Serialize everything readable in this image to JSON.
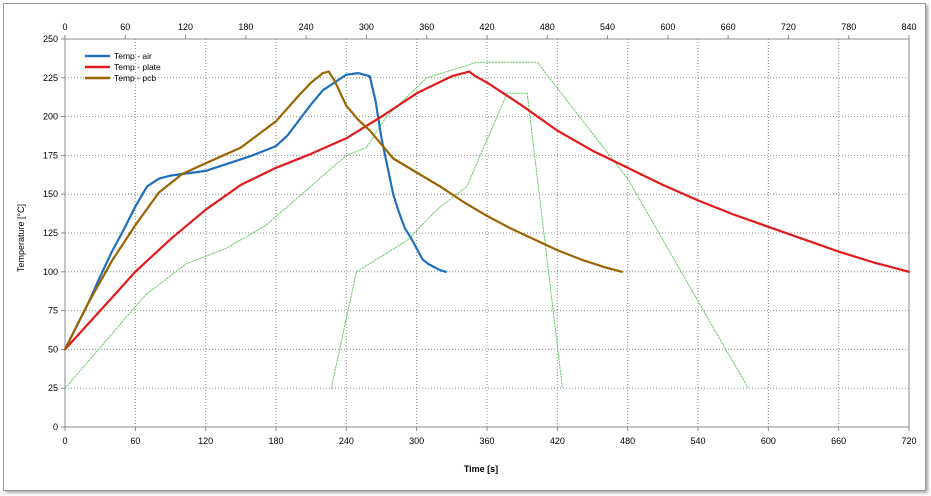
{
  "chart_data": {
    "type": "line",
    "title": "",
    "xlabel": "Time [s]",
    "ylabel": "Temperature [°C]",
    "x_range": [
      0,
      720
    ],
    "x2_range": [
      0,
      840
    ],
    "ylim": [
      0,
      250
    ],
    "x_ticks": [
      "0",
      "60",
      "120",
      "180",
      "240",
      "300",
      "360",
      "420",
      "480",
      "540",
      "600",
      "660",
      "720"
    ],
    "x2_ticks": [
      "0",
      "60",
      "120",
      "180",
      "240",
      "300",
      "360",
      "420",
      "480",
      "540",
      "600",
      "660",
      "720",
      "780",
      "840"
    ],
    "y_ticks": [
      "0",
      "25",
      "50",
      "75",
      "100",
      "125",
      "150",
      "175",
      "200",
      "225",
      "250"
    ],
    "grid": true,
    "legend_position": "top-left",
    "series": [
      {
        "name": "Temp - air",
        "color": "#1f6fbf",
        "axis": "primary",
        "x": [
          0,
          10,
          20,
          30,
          40,
          50,
          60,
          70,
          80,
          90,
          100,
          110,
          120,
          140,
          160,
          180,
          190,
          200,
          210,
          220,
          230,
          240,
          250,
          260,
          265,
          270,
          275,
          280,
          285,
          290,
          295,
          300,
          305,
          310,
          315,
          320,
          325
        ],
        "y": [
          50,
          65,
          80,
          97,
          113,
          127,
          142,
          155,
          160,
          162,
          163,
          164,
          165,
          170,
          175,
          181,
          188,
          198,
          208,
          217,
          222,
          227,
          228,
          226,
          210,
          186,
          168,
          150,
          138,
          128,
          122,
          115,
          108,
          105,
          103,
          101,
          100
        ]
      },
      {
        "name": "Temp - plate",
        "color": "#e31a1c",
        "axis": "primary",
        "x": [
          0,
          30,
          60,
          90,
          120,
          150,
          180,
          210,
          240,
          270,
          300,
          330,
          340,
          345,
          350,
          360,
          390,
          420,
          450,
          480,
          510,
          540,
          570,
          600,
          630,
          660,
          690,
          720
        ],
        "y": [
          50,
          75,
          100,
          121,
          140,
          156,
          167,
          176,
          186,
          200,
          215,
          226,
          228,
          229,
          226,
          222,
          207,
          191,
          178,
          167,
          156,
          146,
          137,
          129,
          121,
          113,
          106,
          100
        ]
      },
      {
        "name": "Temp - pcb",
        "color": "#9a6400",
        "axis": "primary",
        "x": [
          0,
          20,
          40,
          60,
          80,
          100,
          120,
          150,
          180,
          200,
          210,
          220,
          225,
          230,
          240,
          250,
          260,
          270,
          280,
          300,
          320,
          340,
          360,
          380,
          400,
          420,
          440,
          460,
          475
        ],
        "y": [
          50,
          80,
          107,
          130,
          151,
          163,
          170,
          180,
          197,
          214,
          222,
          228,
          229,
          223,
          207,
          198,
          191,
          182,
          173,
          164,
          155,
          145,
          136,
          128,
          121,
          114,
          108,
          103,
          100
        ]
      },
      {
        "name": "",
        "color": "#66cc66",
        "axis": "secondary",
        "x": [
          0,
          80,
          120,
          160,
          200,
          280,
          300,
          320,
          360,
          410,
          470,
          560,
          640,
          680
        ],
        "y": [
          25,
          85,
          105,
          115,
          130,
          175,
          180,
          200,
          225,
          235,
          235,
          160,
          70,
          25
        ]
      },
      {
        "name": "",
        "color": "#66cc66",
        "axis": "secondary",
        "x": [
          265,
          290,
          340,
          370,
          400,
          440,
          460,
          495
        ],
        "y": [
          25,
          100,
          120,
          140,
          155,
          215,
          215,
          25
        ]
      }
    ]
  }
}
